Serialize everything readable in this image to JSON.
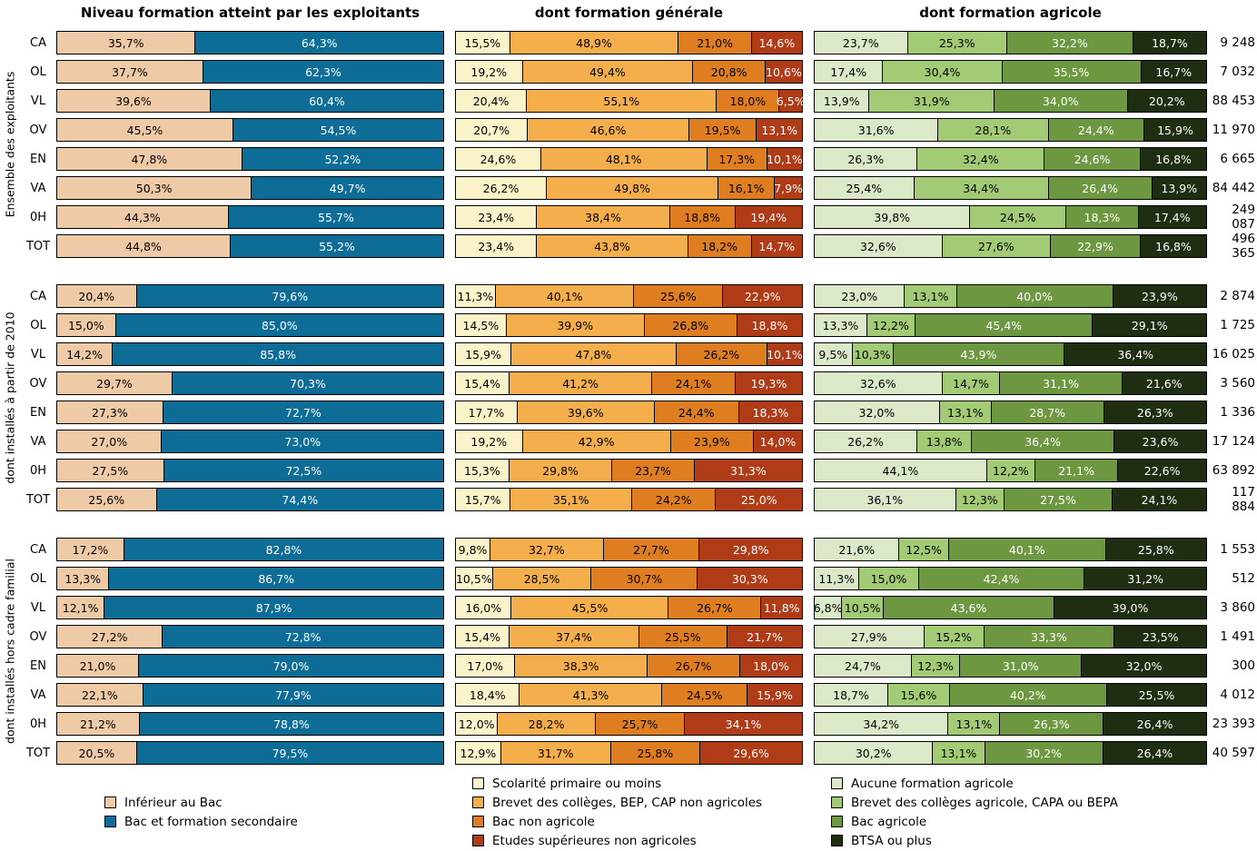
{
  "page": {
    "background": "#ffffff"
  },
  "chart_data": {
    "type": "bar",
    "orientation": "horizontal-stacked",
    "unit": "%",
    "decimal_separator": ",",
    "grid": false,
    "legend_position": "bottom",
    "panels": [
      {
        "title": "Niveau formation atteint par les exploitants",
        "legend": [
          "Inférieur au Bac",
          "Bac et formation secondaire"
        ],
        "colors": [
          "#EFCAA6",
          "#0D6D96"
        ],
        "text_colors": [
          "#000000",
          "#ffffff"
        ]
      },
      {
        "title": "dont formation générale",
        "legend": [
          "Scolarité primaire ou moins",
          "Brevet des collèges, BEP, CAP non agricoles",
          "Bac non agricole",
          "Etudes supérieures non agricoles"
        ],
        "colors": [
          "#FAF2C8",
          "#F4AE4B",
          "#DE7E20",
          "#AF3B17"
        ],
        "text_colors": [
          "#000000",
          "#000000",
          "#000000",
          "#ffffff"
        ]
      },
      {
        "title": "dont formation agricole",
        "legend": [
          "Aucune formation agricole",
          "Brevet des collèges agricole, CAPA ou BEPA",
          "Bac agricole",
          "BTSA ou plus"
        ],
        "colors": [
          "#DCE9C9",
          "#A3CB75",
          "#6E9741",
          "#1F2D11"
        ],
        "text_colors": [
          "#000000",
          "#000000",
          "#ffffff",
          "#ffffff"
        ]
      }
    ],
    "row_categories": [
      "CA",
      "OL",
      "VL",
      "OV",
      "EN",
      "VA",
      "0H",
      "TOT"
    ],
    "groups": [
      {
        "label": "Ensemble des exploitants",
        "rows": [
          {
            "label": "CA",
            "values": [
              [
                35.7,
                64.3
              ],
              [
                15.5,
                48.9,
                21.0,
                14.6
              ],
              [
                23.7,
                25.3,
                32.2,
                18.7
              ]
            ],
            "total": "9 248"
          },
          {
            "label": "OL",
            "values": [
              [
                37.7,
                62.3
              ],
              [
                19.2,
                49.4,
                20.8,
                10.6
              ],
              [
                17.4,
                30.4,
                35.5,
                16.7
              ]
            ],
            "total": "7 032"
          },
          {
            "label": "VL",
            "values": [
              [
                39.6,
                60.4
              ],
              [
                20.4,
                55.1,
                18.0,
                6.5
              ],
              [
                13.9,
                31.9,
                34.0,
                20.2
              ]
            ],
            "total": "88 453"
          },
          {
            "label": "OV",
            "values": [
              [
                45.5,
                54.5
              ],
              [
                20.7,
                46.6,
                19.5,
                13.1
              ],
              [
                31.6,
                28.1,
                24.4,
                15.9
              ]
            ],
            "total": "11 970"
          },
          {
            "label": "EN",
            "values": [
              [
                47.8,
                52.2
              ],
              [
                24.6,
                48.1,
                17.3,
                10.1
              ],
              [
                26.3,
                32.4,
                24.6,
                16.8
              ]
            ],
            "total": "6 665"
          },
          {
            "label": "VA",
            "values": [
              [
                50.3,
                49.7
              ],
              [
                26.2,
                49.8,
                16.1,
                7.9
              ],
              [
                25.4,
                34.4,
                26.4,
                13.9
              ]
            ],
            "total": "84 442"
          },
          {
            "label": "0H",
            "values": [
              [
                44.3,
                55.7
              ],
              [
                23.4,
                38.4,
                18.8,
                19.4
              ],
              [
                39.8,
                24.5,
                18.3,
                17.4
              ]
            ],
            "total": "249 087"
          },
          {
            "label": "TOT",
            "values": [
              [
                44.8,
                55.2
              ],
              [
                23.4,
                43.8,
                18.2,
                14.7
              ],
              [
                32.6,
                27.6,
                22.9,
                16.8
              ]
            ],
            "total": "496 365"
          }
        ]
      },
      {
        "label": "dont installés à partir de 2010",
        "rows": [
          {
            "label": "CA",
            "values": [
              [
                20.4,
                79.6
              ],
              [
                11.3,
                40.1,
                25.6,
                22.9
              ],
              [
                23.0,
                13.1,
                40.0,
                23.9
              ]
            ],
            "total": "2 874"
          },
          {
            "label": "OL",
            "values": [
              [
                15.0,
                85.0
              ],
              [
                14.5,
                39.9,
                26.8,
                18.8
              ],
              [
                13.3,
                12.2,
                45.4,
                29.1
              ]
            ],
            "total": "1 725"
          },
          {
            "label": "VL",
            "values": [
              [
                14.2,
                85.8
              ],
              [
                15.9,
                47.8,
                26.2,
                10.1
              ],
              [
                9.5,
                10.3,
                43.9,
                36.4
              ]
            ],
            "total": "16 025"
          },
          {
            "label": "OV",
            "values": [
              [
                29.7,
                70.3
              ],
              [
                15.4,
                41.2,
                24.1,
                19.3
              ],
              [
                32.6,
                14.7,
                31.1,
                21.6
              ]
            ],
            "total": "3 560"
          },
          {
            "label": "EN",
            "values": [
              [
                27.3,
                72.7
              ],
              [
                17.7,
                39.6,
                24.4,
                18.3
              ],
              [
                32.0,
                13.1,
                28.7,
                26.3
              ]
            ],
            "total": "1 336"
          },
          {
            "label": "VA",
            "values": [
              [
                27.0,
                73.0
              ],
              [
                19.2,
                42.9,
                23.9,
                14.0
              ],
              [
                26.2,
                13.8,
                36.4,
                23.6
              ]
            ],
            "total": "17 124"
          },
          {
            "label": "0H",
            "values": [
              [
                27.5,
                72.5
              ],
              [
                15.3,
                29.8,
                23.7,
                31.3
              ],
              [
                44.1,
                12.2,
                21.1,
                22.6
              ]
            ],
            "total": "63 892"
          },
          {
            "label": "TOT",
            "values": [
              [
                25.6,
                74.4
              ],
              [
                15.7,
                35.1,
                24.2,
                25.0
              ],
              [
                36.1,
                12.3,
                27.5,
                24.1
              ]
            ],
            "total": "117 884"
          }
        ]
      },
      {
        "label": "dont installés hors cadre familial",
        "rows": [
          {
            "label": "CA",
            "values": [
              [
                17.2,
                82.8
              ],
              [
                9.8,
                32.7,
                27.7,
                29.8
              ],
              [
                21.6,
                12.5,
                40.1,
                25.8
              ]
            ],
            "total": "1 553"
          },
          {
            "label": "OL",
            "values": [
              [
                13.3,
                86.7
              ],
              [
                10.5,
                28.5,
                30.7,
                30.3
              ],
              [
                11.3,
                15.0,
                42.4,
                31.2
              ]
            ],
            "total": "512"
          },
          {
            "label": "VL",
            "values": [
              [
                12.1,
                87.9
              ],
              [
                16.0,
                45.5,
                26.7,
                11.8
              ],
              [
                6.8,
                10.5,
                43.6,
                39.0
              ]
            ],
            "total": "3 860"
          },
          {
            "label": "OV",
            "values": [
              [
                27.2,
                72.8
              ],
              [
                15.4,
                37.4,
                25.5,
                21.7
              ],
              [
                27.9,
                15.2,
                33.3,
                23.5
              ]
            ],
            "total": "1 491"
          },
          {
            "label": "EN",
            "values": [
              [
                21.0,
                79.0
              ],
              [
                17.0,
                38.3,
                26.7,
                18.0
              ],
              [
                24.7,
                12.3,
                31.0,
                32.0
              ]
            ],
            "total": "300"
          },
          {
            "label": "VA",
            "values": [
              [
                22.1,
                77.9
              ],
              [
                18.4,
                41.3,
                24.5,
                15.9
              ],
              [
                18.7,
                15.6,
                40.2,
                25.5
              ]
            ],
            "total": "4 012"
          },
          {
            "label": "0H",
            "values": [
              [
                21.2,
                78.8
              ],
              [
                12.0,
                28.2,
                25.7,
                34.1
              ],
              [
                34.2,
                13.1,
                26.3,
                26.4
              ]
            ],
            "total": "23 393"
          },
          {
            "label": "TOT",
            "values": [
              [
                20.5,
                79.5
              ],
              [
                12.9,
                31.7,
                25.8,
                29.6
              ],
              [
                30.2,
                13.1,
                30.2,
                26.4
              ]
            ],
            "total": "40 597"
          }
        ]
      }
    ]
  }
}
